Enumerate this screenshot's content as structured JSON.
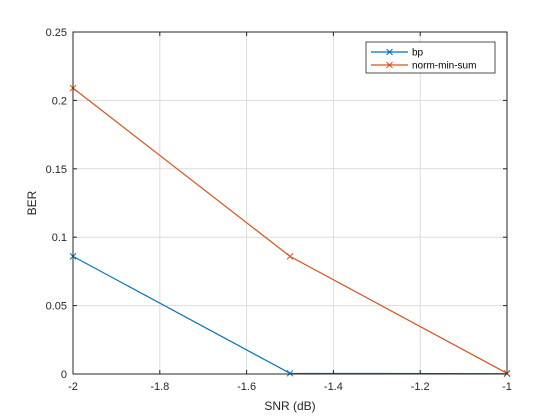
{
  "chart_data": {
    "type": "line",
    "xlabel": "SNR (dB)",
    "ylabel": "BER",
    "xlim": [
      -2,
      -1
    ],
    "ylim": [
      0,
      0.25
    ],
    "x_ticks": [
      -2,
      -1.8,
      -1.6,
      -1.4,
      -1.2,
      -1
    ],
    "x_tick_labels": [
      "-2",
      "-1.8",
      "-1.6",
      "-1.4",
      "-1.2",
      "-1"
    ],
    "y_ticks": [
      0,
      0.05,
      0.1,
      0.15,
      0.2,
      0.25
    ],
    "y_tick_labels": [
      "0",
      "0.05",
      "0.1",
      "0.15",
      "0.2",
      "0.25"
    ],
    "grid": true,
    "legend_position": "top-right",
    "marker": "x",
    "series": [
      {
        "name": "bp",
        "color": "#0072BD",
        "x": [
          -2,
          -1.5,
          -1
        ],
        "values": [
          0.086,
          0.0005,
          0.0002
        ]
      },
      {
        "name": "norm-min-sum",
        "color": "#D95319",
        "x": [
          -2,
          -1.5,
          -1
        ],
        "values": [
          0.209,
          0.086,
          0.0005
        ]
      }
    ]
  }
}
